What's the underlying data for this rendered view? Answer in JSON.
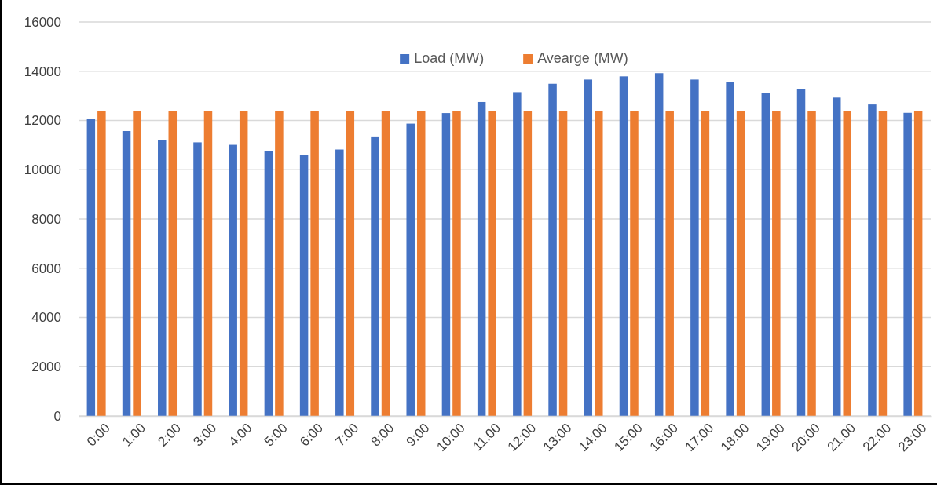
{
  "chart_data": {
    "type": "bar",
    "categories": [
      "0:00",
      "1:00",
      "2:00",
      "3:00",
      "4:00",
      "5:00",
      "6:00",
      "7:00",
      "8:00",
      "9:00",
      "10:00",
      "11:00",
      "12:00",
      "13:00",
      "14:00",
      "15:00",
      "16:00",
      "17:00",
      "18:00",
      "19:00",
      "20:00",
      "21:00",
      "22:00",
      "23:00"
    ],
    "series": [
      {
        "name": "Load (MW)",
        "color": "#4472c4",
        "values": [
          12070,
          11570,
          11200,
          11110,
          11010,
          10770,
          10590,
          10820,
          11350,
          11870,
          12300,
          12750,
          13150,
          13490,
          13660,
          13790,
          13920,
          13660,
          13550,
          13130,
          13270,
          12930,
          12650,
          12310
        ]
      },
      {
        "name": "Avearge (MW)",
        "color": "#ed7d31",
        "values": [
          12370,
          12370,
          12370,
          12370,
          12370,
          12370,
          12370,
          12370,
          12370,
          12370,
          12370,
          12370,
          12370,
          12370,
          12370,
          12370,
          12370,
          12370,
          12370,
          12370,
          12370,
          12370,
          12370,
          12370
        ]
      }
    ],
    "ylim": [
      0,
      16000
    ],
    "yticks": [
      0,
      2000,
      4000,
      6000,
      8000,
      10000,
      12000,
      14000,
      16000
    ],
    "grid": "y",
    "legend": "top"
  }
}
